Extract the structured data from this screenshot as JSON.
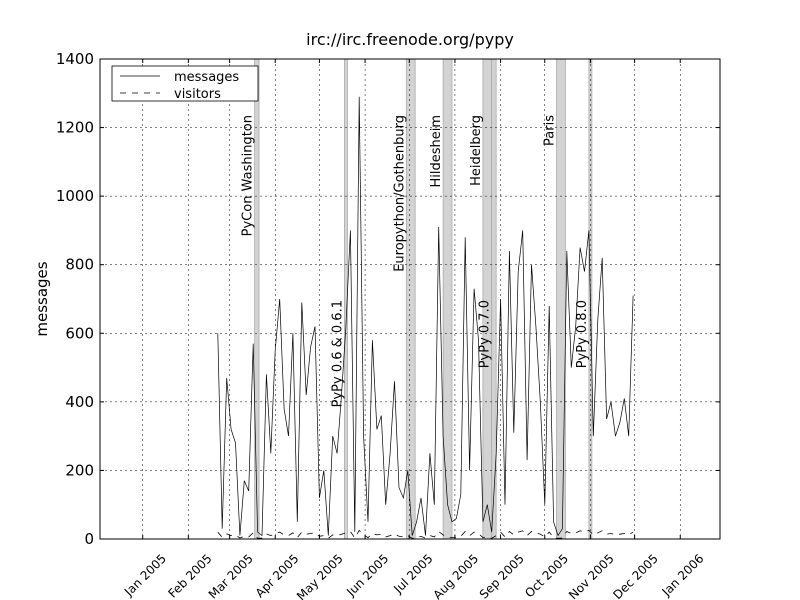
{
  "chart_data": {
    "type": "line",
    "title": "irc://irc.freenode.org/pypy",
    "y_label": "messages",
    "x": [
      731998,
      732001,
      732004,
      732007,
      732010,
      732013,
      732016,
      732019,
      732022,
      732025,
      732028,
      732031,
      732034,
      732037,
      732040,
      732043,
      732046,
      732049,
      732052,
      732055,
      732058,
      732061,
      732064,
      732067,
      732070,
      732073,
      732076,
      732079,
      732082,
      732085,
      732088,
      732091,
      732094,
      732097,
      732100,
      732103,
      732106,
      732109,
      732112,
      732115,
      732118,
      732121,
      732124,
      732127,
      732130,
      732133,
      732136,
      732139,
      732142,
      732145,
      732148,
      732151,
      732154,
      732157,
      732160,
      732163,
      732166,
      732169,
      732172,
      732175,
      732178,
      732181,
      732184,
      732187,
      732190,
      732193,
      732196,
      732199,
      732202,
      732205,
      732208,
      732211,
      732214,
      732217,
      732220,
      732223,
      732226,
      732229,
      732232,
      732235,
      732238,
      732241,
      732244,
      732247,
      732250,
      732253,
      732256,
      732259,
      732262,
      732265,
      732268,
      732271,
      732274,
      732277,
      732280
    ],
    "series": [
      {
        "name": "messages",
        "color": "#000000",
        "linestyle": "solid",
        "values": [
          600,
          30,
          470,
          320,
          280,
          10,
          170,
          140,
          570,
          20,
          10,
          480,
          250,
          550,
          700,
          380,
          300,
          600,
          50,
          690,
          420,
          560,
          620,
          120,
          200,
          10,
          300,
          250,
          420,
          620,
          900,
          20,
          1290,
          300,
          50,
          580,
          320,
          360,
          100,
          250,
          460,
          150,
          120,
          200,
          10,
          50,
          120,
          10,
          250,
          100,
          910,
          300,
          100,
          50,
          60,
          130,
          880,
          200,
          730,
          580,
          50,
          100,
          20,
          250,
          700,
          100,
          840,
          310,
          780,
          900,
          230,
          800,
          620,
          400,
          100,
          680,
          50,
          10,
          30,
          840,
          500,
          620,
          850,
          780,
          900,
          300,
          640,
          820,
          350,
          400,
          300,
          340,
          410,
          300,
          710
        ]
      },
      {
        "name": "visitors",
        "color": "#000000",
        "linestyle": "dashed",
        "values": [
          20,
          5,
          15,
          10,
          12,
          3,
          8,
          6,
          18,
          2,
          3,
          15,
          10,
          16,
          20,
          12,
          10,
          18,
          4,
          20,
          14,
          16,
          18,
          8,
          10,
          2,
          12,
          10,
          14,
          18,
          22,
          3,
          25,
          12,
          4,
          16,
          12,
          14,
          6,
          10,
          15,
          8,
          6,
          10,
          2,
          4,
          8,
          2,
          10,
          6,
          22,
          12,
          6,
          4,
          5,
          8,
          22,
          10,
          20,
          16,
          4,
          6,
          2,
          10,
          20,
          6,
          22,
          12,
          20,
          24,
          10,
          22,
          18,
          14,
          6,
          20,
          4,
          2,
          3,
          22,
          16,
          18,
          24,
          20,
          25,
          12,
          18,
          24,
          14,
          16,
          12,
          14,
          16,
          12,
          20
        ]
      }
    ],
    "events": [
      {
        "label": "PyCon Washington",
        "start": 732023,
        "end": 732026
      },
      {
        "label": "PyPy 0.6 & 0.6.1",
        "start": 732084,
        "end": 732086
      },
      {
        "label": "Europython/Gothenburg",
        "start": 732126,
        "end": 732132
      },
      {
        "label": "Hildesheim",
        "start": 732151,
        "end": 732157
      },
      {
        "label": "Heidelberg",
        "start": 732178,
        "end": 732184
      },
      {
        "label": "PyPy 0.7.0",
        "start": 732184,
        "end": 732187
      },
      {
        "label": "Paris",
        "start": 732228,
        "end": 732234
      },
      {
        "label": "PyPy 0.8.0",
        "start": 732250,
        "end": 732252
      }
    ],
    "xlim": [
      731918,
      732339
    ],
    "xticks": [
      {
        "value": 731947,
        "label": "Jan 2005"
      },
      {
        "value": 731978,
        "label": "Feb 2005"
      },
      {
        "value": 732006,
        "label": "Mar 2005"
      },
      {
        "value": 732037,
        "label": "Apr 2005"
      },
      {
        "value": 732067,
        "label": "May 2005"
      },
      {
        "value": 732098,
        "label": "Jun 2005"
      },
      {
        "value": 732128,
        "label": "Jul 2005"
      },
      {
        "value": 732159,
        "label": "Aug 2005"
      },
      {
        "value": 732190,
        "label": "Sep 2005"
      },
      {
        "value": 732220,
        "label": "Oct 2005"
      },
      {
        "value": 732251,
        "label": "Nov 2005"
      },
      {
        "value": 732281,
        "label": "Dec 2005"
      },
      {
        "value": 732312,
        "label": "Jan 2006"
      }
    ],
    "ylim": [
      0,
      1400
    ],
    "yticks": [
      0,
      200,
      400,
      600,
      800,
      1000,
      1200,
      1400
    ],
    "grid": true,
    "legend": "upper left"
  }
}
